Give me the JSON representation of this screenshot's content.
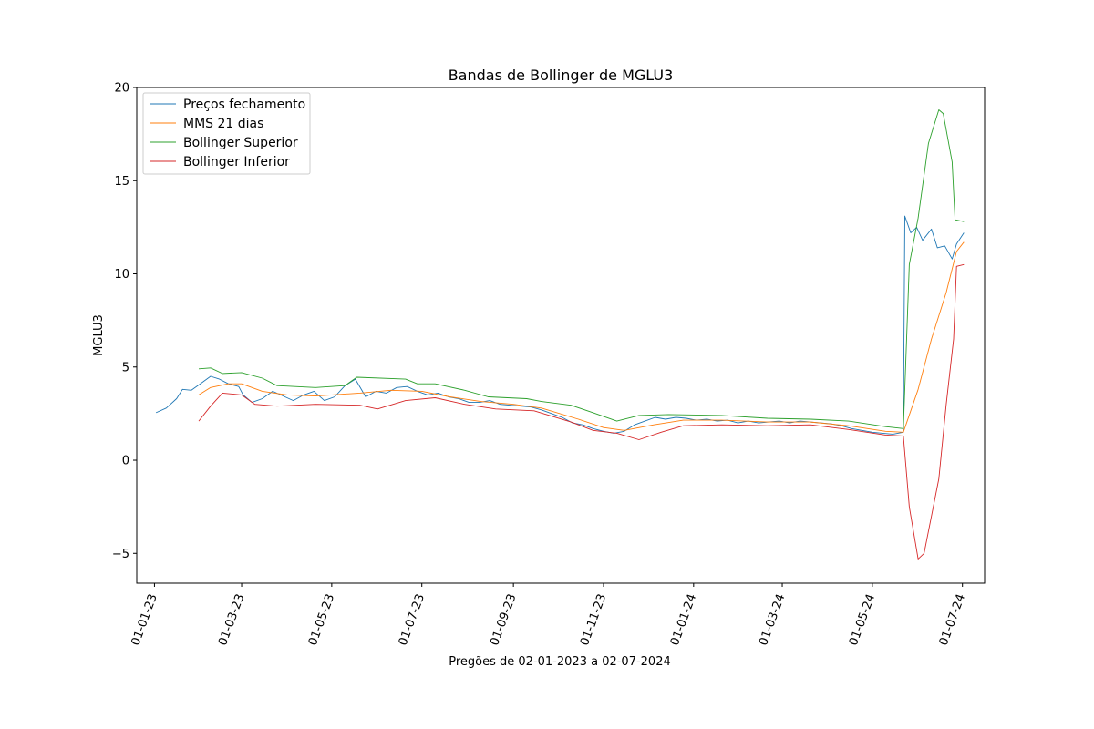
{
  "chart_data": {
    "type": "line",
    "title": "Bandas de Bollinger de MGLU3",
    "xlabel": "Pregões de 02-01-2023 a 02-07-2024",
    "ylabel": "MGLU3",
    "xlim": [
      "2022-12-20",
      "2024-07-16"
    ],
    "ylim": [
      -6.6,
      20
    ],
    "x_ticks": [
      "01-01-23",
      "01-03-23",
      "01-05-23",
      "01-07-23",
      "01-09-23",
      "01-11-23",
      "01-01-24",
      "01-03-24",
      "01-05-24",
      "01-07-24"
    ],
    "y_ticks": [
      -5,
      0,
      5,
      10,
      15,
      20
    ],
    "grid": false,
    "legend_position": "upper-left",
    "series": [
      {
        "name": "Preços fechamento",
        "color": "#1f77b4",
        "points": [
          [
            "2023-01-02",
            2.55
          ],
          [
            "2023-01-09",
            2.8
          ],
          [
            "2023-01-16",
            3.3
          ],
          [
            "2023-01-20",
            3.8
          ],
          [
            "2023-01-26",
            3.75
          ],
          [
            "2023-02-01",
            4.1
          ],
          [
            "2023-02-08",
            4.5
          ],
          [
            "2023-02-14",
            4.35
          ],
          [
            "2023-02-20",
            4.1
          ],
          [
            "2023-02-27",
            3.95
          ],
          [
            "2023-03-02",
            3.5
          ],
          [
            "2023-03-08",
            3.1
          ],
          [
            "2023-03-15",
            3.3
          ],
          [
            "2023-03-22",
            3.7
          ],
          [
            "2023-03-29",
            3.45
          ],
          [
            "2023-04-05",
            3.2
          ],
          [
            "2023-04-12",
            3.5
          ],
          [
            "2023-04-19",
            3.7
          ],
          [
            "2023-04-26",
            3.2
          ],
          [
            "2023-05-03",
            3.4
          ],
          [
            "2023-05-10",
            4.0
          ],
          [
            "2023-05-17",
            4.35
          ],
          [
            "2023-05-24",
            3.4
          ],
          [
            "2023-05-31",
            3.7
          ],
          [
            "2023-06-07",
            3.6
          ],
          [
            "2023-06-14",
            3.9
          ],
          [
            "2023-06-21",
            3.95
          ],
          [
            "2023-06-28",
            3.7
          ],
          [
            "2023-07-05",
            3.5
          ],
          [
            "2023-07-12",
            3.6
          ],
          [
            "2023-07-19",
            3.4
          ],
          [
            "2023-07-26",
            3.3
          ],
          [
            "2023-08-02",
            3.1
          ],
          [
            "2023-08-09",
            3.1
          ],
          [
            "2023-08-16",
            3.2
          ],
          [
            "2023-08-23",
            3.0
          ],
          [
            "2023-08-30",
            2.95
          ],
          [
            "2023-09-06",
            2.9
          ],
          [
            "2023-09-13",
            2.85
          ],
          [
            "2023-09-20",
            2.7
          ],
          [
            "2023-09-27",
            2.5
          ],
          [
            "2023-10-04",
            2.3
          ],
          [
            "2023-10-11",
            2.0
          ],
          [
            "2023-10-18",
            1.9
          ],
          [
            "2023-10-25",
            1.7
          ],
          [
            "2023-11-01",
            1.55
          ],
          [
            "2023-11-08",
            1.45
          ],
          [
            "2023-11-15",
            1.55
          ],
          [
            "2023-11-22",
            1.9
          ],
          [
            "2023-11-29",
            2.1
          ],
          [
            "2023-12-06",
            2.3
          ],
          [
            "2023-12-13",
            2.2
          ],
          [
            "2023-12-20",
            2.3
          ],
          [
            "2023-12-27",
            2.25
          ],
          [
            "2024-01-03",
            2.15
          ],
          [
            "2024-01-10",
            2.2
          ],
          [
            "2024-01-17",
            2.1
          ],
          [
            "2024-01-24",
            2.15
          ],
          [
            "2024-01-31",
            2.0
          ],
          [
            "2024-02-07",
            2.1
          ],
          [
            "2024-02-14",
            2.0
          ],
          [
            "2024-02-21",
            2.05
          ],
          [
            "2024-02-28",
            2.1
          ],
          [
            "2024-03-06",
            2.0
          ],
          [
            "2024-03-13",
            2.1
          ],
          [
            "2024-03-20",
            2.05
          ],
          [
            "2024-03-27",
            2.0
          ],
          [
            "2024-04-03",
            1.95
          ],
          [
            "2024-04-10",
            1.85
          ],
          [
            "2024-04-17",
            1.7
          ],
          [
            "2024-04-24",
            1.6
          ],
          [
            "2024-05-01",
            1.5
          ],
          [
            "2024-05-08",
            1.45
          ],
          [
            "2024-05-15",
            1.4
          ],
          [
            "2024-05-22",
            1.5
          ],
          [
            "2024-05-23",
            13.1
          ],
          [
            "2024-05-27",
            12.2
          ],
          [
            "2024-05-31",
            12.5
          ],
          [
            "2024-06-04",
            11.8
          ],
          [
            "2024-06-10",
            12.4
          ],
          [
            "2024-06-14",
            11.4
          ],
          [
            "2024-06-19",
            11.5
          ],
          [
            "2024-06-24",
            10.8
          ],
          [
            "2024-06-27",
            11.6
          ],
          [
            "2024-07-02",
            12.2
          ]
        ]
      },
      {
        "name": "MMS 21 dias",
        "color": "#ff7f0e",
        "points": [
          [
            "2023-01-31",
            3.5
          ],
          [
            "2023-02-08",
            3.9
          ],
          [
            "2023-02-20",
            4.1
          ],
          [
            "2023-03-01",
            4.1
          ],
          [
            "2023-03-15",
            3.7
          ],
          [
            "2023-04-01",
            3.5
          ],
          [
            "2023-04-20",
            3.45
          ],
          [
            "2023-05-01",
            3.5
          ],
          [
            "2023-05-20",
            3.6
          ],
          [
            "2023-06-10",
            3.75
          ],
          [
            "2023-07-01",
            3.7
          ],
          [
            "2023-07-20",
            3.4
          ],
          [
            "2023-08-10",
            3.15
          ],
          [
            "2023-09-01",
            3.0
          ],
          [
            "2023-09-20",
            2.8
          ],
          [
            "2023-10-15",
            2.2
          ],
          [
            "2023-11-01",
            1.75
          ],
          [
            "2023-11-15",
            1.6
          ],
          [
            "2023-12-05",
            1.9
          ],
          [
            "2023-12-25",
            2.15
          ],
          [
            "2024-01-20",
            2.15
          ],
          [
            "2024-02-20",
            2.05
          ],
          [
            "2024-03-20",
            2.05
          ],
          [
            "2024-04-15",
            1.85
          ],
          [
            "2024-05-10",
            1.55
          ],
          [
            "2024-05-22",
            1.5
          ],
          [
            "2024-06-01",
            3.8
          ],
          [
            "2024-06-10",
            6.5
          ],
          [
            "2024-06-20",
            9.0
          ],
          [
            "2024-06-27",
            11.2
          ],
          [
            "2024-07-02",
            11.7
          ]
        ]
      },
      {
        "name": "Bollinger Superior",
        "color": "#2ca02c",
        "points": [
          [
            "2023-01-31",
            4.9
          ],
          [
            "2023-02-08",
            4.95
          ],
          [
            "2023-02-16",
            4.65
          ],
          [
            "2023-03-01",
            4.7
          ],
          [
            "2023-03-15",
            4.4
          ],
          [
            "2023-03-25",
            4.0
          ],
          [
            "2023-04-20",
            3.9
          ],
          [
            "2023-05-10",
            4.0
          ],
          [
            "2023-05-18",
            4.45
          ],
          [
            "2023-06-20",
            4.35
          ],
          [
            "2023-06-28",
            4.1
          ],
          [
            "2023-07-10",
            4.1
          ],
          [
            "2023-07-30",
            3.75
          ],
          [
            "2023-08-15",
            3.4
          ],
          [
            "2023-09-10",
            3.3
          ],
          [
            "2023-09-20",
            3.15
          ],
          [
            "2023-10-10",
            2.95
          ],
          [
            "2023-10-25",
            2.55
          ],
          [
            "2023-11-10",
            2.1
          ],
          [
            "2023-11-25",
            2.4
          ],
          [
            "2023-12-15",
            2.45
          ],
          [
            "2024-01-20",
            2.4
          ],
          [
            "2024-02-20",
            2.25
          ],
          [
            "2024-03-20",
            2.2
          ],
          [
            "2024-04-15",
            2.1
          ],
          [
            "2024-05-10",
            1.8
          ],
          [
            "2024-05-22",
            1.7
          ],
          [
            "2024-05-26",
            10.5
          ],
          [
            "2024-06-01",
            13.0
          ],
          [
            "2024-06-08",
            17.0
          ],
          [
            "2024-06-15",
            18.8
          ],
          [
            "2024-06-18",
            18.6
          ],
          [
            "2024-06-24",
            16.0
          ],
          [
            "2024-06-26",
            12.9
          ],
          [
            "2024-07-02",
            12.8
          ]
        ]
      },
      {
        "name": "Bollinger Inferior",
        "color": "#d62728",
        "points": [
          [
            "2023-01-31",
            2.1
          ],
          [
            "2023-02-08",
            2.9
          ],
          [
            "2023-02-16",
            3.6
          ],
          [
            "2023-03-01",
            3.5
          ],
          [
            "2023-03-10",
            3.0
          ],
          [
            "2023-03-25",
            2.9
          ],
          [
            "2023-04-20",
            3.0
          ],
          [
            "2023-05-20",
            2.95
          ],
          [
            "2023-06-01",
            2.75
          ],
          [
            "2023-06-20",
            3.2
          ],
          [
            "2023-07-10",
            3.35
          ],
          [
            "2023-07-30",
            3.0
          ],
          [
            "2023-08-20",
            2.75
          ],
          [
            "2023-09-15",
            2.65
          ],
          [
            "2023-10-10",
            2.05
          ],
          [
            "2023-10-25",
            1.6
          ],
          [
            "2023-11-10",
            1.45
          ],
          [
            "2023-11-25",
            1.1
          ],
          [
            "2023-12-10",
            1.5
          ],
          [
            "2023-12-25",
            1.85
          ],
          [
            "2024-01-20",
            1.9
          ],
          [
            "2024-02-20",
            1.85
          ],
          [
            "2024-03-20",
            1.9
          ],
          [
            "2024-04-15",
            1.65
          ],
          [
            "2024-05-10",
            1.35
          ],
          [
            "2024-05-22",
            1.3
          ],
          [
            "2024-05-26",
            -2.5
          ],
          [
            "2024-06-01",
            -5.3
          ],
          [
            "2024-06-05",
            -5.0
          ],
          [
            "2024-06-10",
            -3.0
          ],
          [
            "2024-06-15",
            -1.0
          ],
          [
            "2024-06-20",
            3.0
          ],
          [
            "2024-06-25",
            6.5
          ],
          [
            "2024-06-27",
            10.4
          ],
          [
            "2024-07-02",
            10.5
          ]
        ]
      }
    ]
  }
}
